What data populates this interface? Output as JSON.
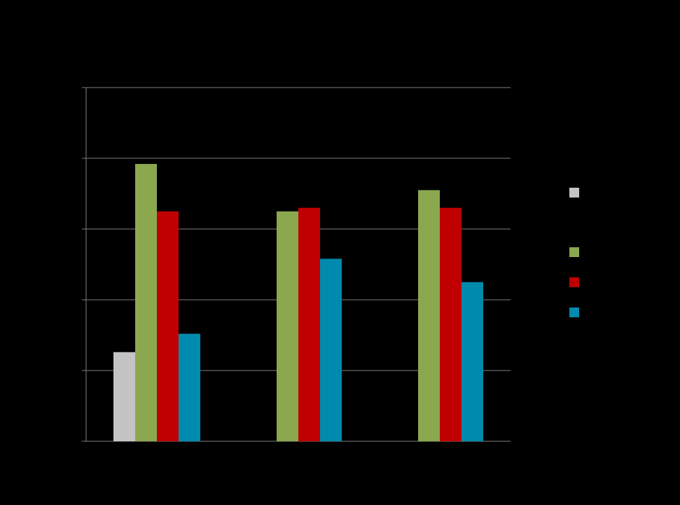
{
  "chart_data": {
    "type": "bar",
    "ylim": [
      0,
      5
    ],
    "grid": true,
    "legend_position": "right",
    "colors": {
      "background": "#000000",
      "grid": "#7f7f7f",
      "axis": "#7f7f7f"
    },
    "series": [
      {
        "color": "#c4c4c4",
        "values": [
          1.26,
          null,
          null
        ]
      },
      {
        "color": "#8ba84f",
        "values": [
          3.92,
          3.25,
          3.55
        ]
      },
      {
        "color": "#c00000",
        "values": [
          3.25,
          3.3,
          3.3
        ]
      },
      {
        "color": "#008aad",
        "values": [
          1.52,
          2.58,
          2.25
        ]
      }
    ]
  }
}
